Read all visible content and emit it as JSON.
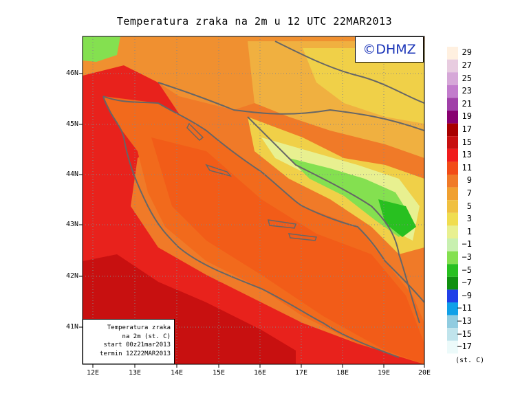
{
  "title": "Temperatura zraka na 2m u 12 UTC 22MAR2013",
  "brand": "©DHMZ",
  "info": {
    "line1": "Temperatura zraka",
    "line2": "na 2m (st. C)",
    "line3": "start 00z21mar2013",
    "line4": "termin 12Z22MAR2013"
  },
  "axes": {
    "lat_labels": [
      "46N",
      "45N",
      "44N",
      "43N",
      "42N",
      "41N"
    ],
    "lon_labels": [
      "12E",
      "13E",
      "14E",
      "15E",
      "16E",
      "17E",
      "18E",
      "19E",
      "20E"
    ]
  },
  "legend": {
    "labels": [
      "29",
      "27",
      "25",
      "23",
      "21",
      "19",
      "17",
      "15",
      "13",
      "11",
      "9",
      "7",
      "5",
      "3",
      "1",
      "−1",
      "−3",
      "−5",
      "−7",
      "−9",
      "−11",
      "−13",
      "−15",
      "−17"
    ],
    "colors": [
      "#fff0e0",
      "#e8cce0",
      "#d6a8d8",
      "#c27ccc",
      "#a040a8",
      "#880070",
      "#a80000",
      "#c81010",
      "#f01c1c",
      "#f24c18",
      "#f07a28",
      "#f0a030",
      "#f0c040",
      "#f0dd50",
      "#e8f090",
      "#c8f0b0",
      "#84e050",
      "#28c020",
      "#109010",
      "#2040e8",
      "#10a0e8",
      "#90cce0",
      "#c0e4ec",
      "#ecfafa"
    ],
    "unit": "(st. C)"
  },
  "palette": {
    "sea": "#f26a1c",
    "sea_warm": "#f25c18",
    "coast_hot": "#e8221c",
    "coast_hotter": "#c81010",
    "land_mild": "#f09030",
    "land_cool": "#f0b040",
    "land_cooler": "#f0d048",
    "mountain_cold": "#e8f090",
    "frost": "#84e050",
    "green": "#28c020",
    "border": "#666666"
  }
}
